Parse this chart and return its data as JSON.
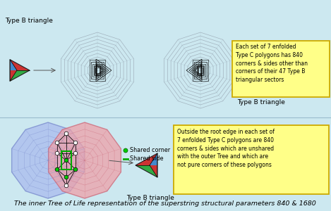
{
  "bg_color": "#cce8f0",
  "title": "The inner Tree of Life representation of the superstring structural parameters 840 & 1680",
  "title_fontsize": 7.2,
  "top_label": "Type B triangle",
  "bottom_left_label": "Type B triangle",
  "bottom_right_label": "Type B triangle",
  "legend_corner": "Shared corner",
  "legend_side": "Shared side",
  "box1_text": "Outside the root edge in each set of\n7 enfolded Type C polygons are 840\ncorners & sides which are unshared\nwith the outer Tree and which are\nnot pure corners of these polygons",
  "box2_text": "Each set of 7 enfolded\nType C polygons has 840\ncorners & sides other than\ncorners of their 47 Type B\ntriangular sectors",
  "box_bg": "#ffff88",
  "box_edge": "#ccaa00",
  "blue_fill": "#aabbee",
  "blue_edge": "#7788cc",
  "red_fill": "#eea0a8",
  "red_edge": "#cc6677",
  "tree_line": "#000000",
  "green_dot": "#00cc00",
  "green_line": "#00aa00",
  "spoke_color": "#8899aa",
  "nested_color": "#666677"
}
